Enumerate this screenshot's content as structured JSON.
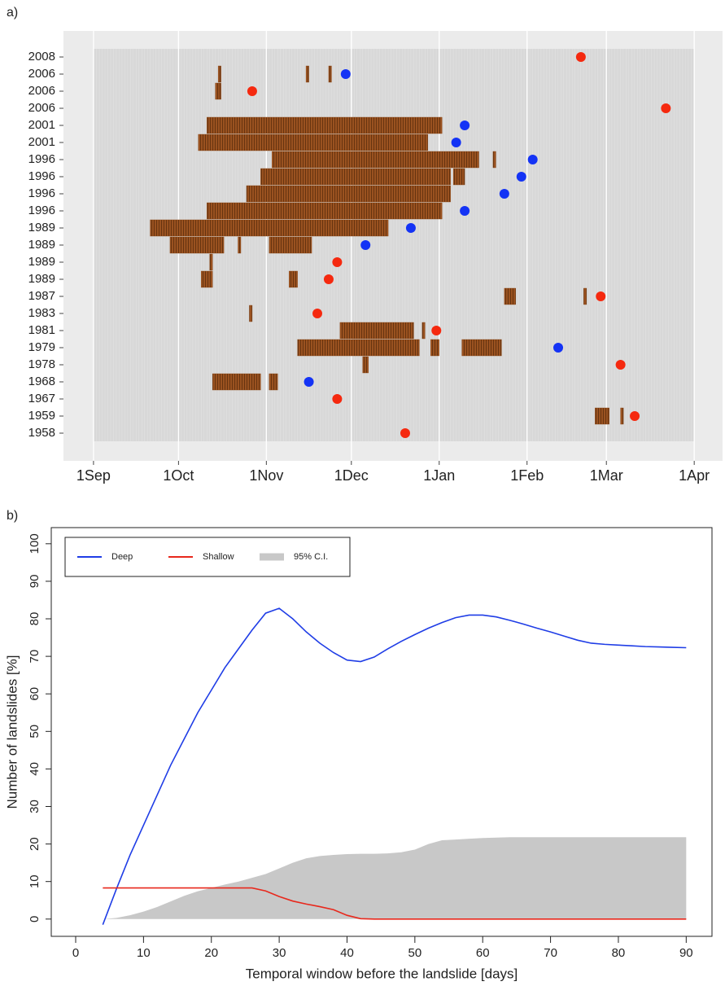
{
  "chart_data": [
    {
      "type": "timeline",
      "panel_label": "a)",
      "categories": [
        "2008",
        "2006",
        "2006",
        "2006",
        "2001",
        "2001",
        "1996",
        "1996",
        "1996",
        "1996",
        "1989",
        "1989",
        "1989",
        "1989",
        "1987",
        "1983",
        "1981",
        "1979",
        "1978",
        "1968",
        "1967",
        "1959",
        "1958"
      ],
      "intervals": [
        [],
        [
          [
            44,
            45
          ],
          [
            75,
            76
          ],
          [
            83,
            84
          ]
        ],
        [
          [
            43,
            45
          ]
        ],
        [],
        [
          [
            40,
            123
          ]
        ],
        [
          [
            37,
            118
          ]
        ],
        [
          [
            63,
            136
          ],
          [
            141,
            142
          ]
        ],
        [
          [
            59,
            126
          ],
          [
            127,
            131
          ]
        ],
        [
          [
            54,
            126
          ]
        ],
        [
          [
            40,
            123
          ]
        ],
        [
          [
            20,
            104
          ]
        ],
        [
          [
            27,
            46
          ],
          [
            51,
            52
          ],
          [
            62,
            77
          ]
        ],
        [
          [
            41,
            42
          ]
        ],
        [
          [
            38,
            42
          ],
          [
            69,
            72
          ]
        ],
        [
          [
            145,
            149
          ],
          [
            173,
            174
          ]
        ],
        [
          [
            55,
            56
          ]
        ],
        [
          [
            87,
            113
          ],
          [
            116,
            117
          ]
        ],
        [
          [
            72,
            115
          ],
          [
            119,
            122
          ],
          [
            130,
            144
          ]
        ],
        [
          [
            95,
            97
          ]
        ],
        [
          [
            42,
            59
          ],
          [
            62,
            65
          ]
        ],
        [],
        [
          [
            177,
            182
          ],
          [
            186,
            187
          ]
        ],
        []
      ],
      "event_x": [
        172,
        89,
        56,
        202,
        131,
        128,
        155,
        151,
        145,
        131,
        112,
        96,
        86,
        83,
        179,
        79,
        121,
        164,
        186,
        76,
        86,
        191,
        110
      ],
      "event_color": [
        "#f5290f",
        "#1433f5",
        "#f5290f",
        "#f5290f",
        "#1433f5",
        "#1433f5",
        "#1433f5",
        "#1433f5",
        "#1433f5",
        "#1433f5",
        "#1433f5",
        "#1433f5",
        "#f5290f",
        "#f5290f",
        "#f5290f",
        "#f5290f",
        "#f5290f",
        "#1433f5",
        "#f5290f",
        "#1433f5",
        "#f5290f",
        "#f5290f",
        "#f5290f"
      ],
      "bar_color": "#8b4513",
      "xlim": [
        -10.6,
        222
      ],
      "xticks": [
        {
          "value": 0,
          "label": "1Sep"
        },
        {
          "value": 30,
          "label": "1Oct"
        },
        {
          "value": 61,
          "label": "1Nov"
        },
        {
          "value": 91,
          "label": "1Dec"
        },
        {
          "value": 122,
          "label": "1Jan"
        },
        {
          "value": 153,
          "label": "1Feb"
        },
        {
          "value": 181,
          "label": "1Mar"
        },
        {
          "value": 212,
          "label": "1Apr"
        }
      ],
      "grid": true
    },
    {
      "type": "line",
      "panel_label": "b)",
      "xlabel": "Temporal window before the landslide [days]",
      "ylabel": "Number of landslides [%]",
      "x": [
        4,
        6,
        8,
        10,
        12,
        14,
        16,
        18,
        20,
        22,
        24,
        26,
        28,
        30,
        32,
        34,
        36,
        38,
        40,
        42,
        44,
        46,
        48,
        50,
        52,
        54,
        56,
        58,
        60,
        62,
        64,
        66,
        68,
        70,
        72,
        74,
        76,
        78,
        80,
        82,
        84,
        86,
        88,
        90
      ],
      "series": [
        {
          "name": "Deep",
          "color": "#1f3de6",
          "values": [
            -1.5,
            8,
            17,
            25,
            33,
            41,
            48,
            55,
            61,
            67,
            72,
            77,
            81.5,
            82.8,
            80,
            76.5,
            73.5,
            71,
            69,
            68.6,
            69.8,
            72,
            74,
            75.8,
            77.5,
            79,
            80.3,
            81,
            81,
            80.5,
            79.6,
            78.6,
            77.5,
            76.5,
            75.4,
            74.3,
            73.5,
            73.2,
            73,
            72.8,
            72.6,
            72.5,
            72.4,
            72.3
          ]
        },
        {
          "name": "Shallow",
          "color": "#e8281c",
          "values": [
            8.3,
            8.3,
            8.3,
            8.3,
            8.3,
            8.3,
            8.3,
            8.3,
            8.3,
            8.3,
            8.3,
            8.3,
            7.5,
            6,
            4.8,
            4,
            3.3,
            2.5,
            1,
            0.1,
            0,
            0,
            0,
            0,
            0,
            0,
            0,
            0,
            0,
            0,
            0,
            0,
            0,
            0,
            0,
            0,
            0,
            0,
            0,
            0,
            0,
            0,
            0,
            0
          ]
        },
        {
          "name": "95% C.I.",
          "color": "#c8c8c8",
          "kind": "area",
          "values": [
            0,
            0.3,
            1,
            2,
            3.2,
            4.7,
            6.2,
            7.4,
            8.3,
            9.2,
            10,
            11,
            12,
            13.5,
            15,
            16.2,
            16.8,
            17.1,
            17.3,
            17.4,
            17.4,
            17.5,
            17.8,
            18.5,
            20,
            21,
            21.2,
            21.4,
            21.6,
            21.7,
            21.8,
            21.8,
            21.8,
            21.8,
            21.8,
            21.8,
            21.8,
            21.8,
            21.8,
            21.8,
            21.8,
            21.8,
            21.8,
            21.8
          ]
        }
      ],
      "xlim": [
        -3.6,
        93.8
      ],
      "ylim": [
        -4.6,
        104.3
      ],
      "xticks": [
        0,
        10,
        20,
        30,
        40,
        50,
        60,
        70,
        80,
        90
      ],
      "yticks": [
        0,
        10,
        20,
        30,
        40,
        50,
        60,
        70,
        80,
        90,
        100
      ],
      "legend": "top-left"
    }
  ]
}
